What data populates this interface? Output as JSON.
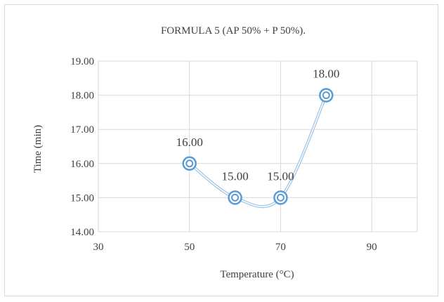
{
  "chart_data": {
    "type": "line",
    "title": "FORMULA  5 (AP 50% + P 50%).",
    "xlabel": "Temperature (°C)",
    "ylabel": "Time (min)",
    "xlim": [
      30,
      100
    ],
    "ylim": [
      14,
      19
    ],
    "x_ticks": [
      "30",
      "50",
      "70",
      "90"
    ],
    "y_ticks": [
      "14.00",
      "15.00",
      "16.00",
      "17.00",
      "18.00",
      "19.00"
    ],
    "grid": true,
    "smooth": true,
    "series": [
      {
        "x": [
          50,
          60,
          70,
          80
        ],
        "values": [
          16,
          15,
          15,
          18
        ],
        "labels": [
          "16.00",
          "15.00",
          "15.00",
          "18.00"
        ]
      }
    ],
    "colors": {
      "line": "#9dc3e6",
      "marker": "#5b9bd5",
      "grid": "#d9d9d9",
      "text": "#404040"
    }
  }
}
